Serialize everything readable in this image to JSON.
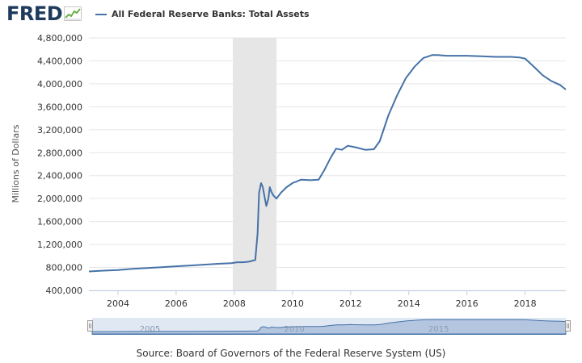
{
  "header": {
    "logo_text": "FRED",
    "legend_label": "All Federal Reserve Banks: Total Assets",
    "series_color": "#4572a7"
  },
  "chart_data": {
    "type": "line",
    "title": "",
    "xlabel": "",
    "ylabel": "Millions of Dollars",
    "xlim": [
      2003.0,
      2019.4
    ],
    "ylim": [
      400000,
      4800000
    ],
    "y_ticks": [
      400000,
      800000,
      1200000,
      1600000,
      2000000,
      2400000,
      2800000,
      3200000,
      3600000,
      4000000,
      4400000,
      4800000
    ],
    "y_tick_labels": [
      "400,000",
      "800,000",
      "1,200,000",
      "1,600,000",
      "2,000,000",
      "2,400,000",
      "2,800,000",
      "3,200,000",
      "3,600,000",
      "4,000,000",
      "4,400,000",
      "4,800,000"
    ],
    "x_ticks": [
      2004,
      2006,
      2008,
      2010,
      2012,
      2014,
      2016,
      2018
    ],
    "x_tick_labels": [
      "2004",
      "2006",
      "2008",
      "2010",
      "2012",
      "2014",
      "2016",
      "2018"
    ],
    "grid": "horizontal",
    "recession_shading": [
      2007.95,
      2009.45
    ],
    "series": [
      {
        "name": "All Federal Reserve Banks: Total Assets",
        "color": "#4572a7",
        "x": [
          2003.0,
          2003.5,
          2004.0,
          2004.5,
          2005.0,
          2005.5,
          2006.0,
          2006.5,
          2007.0,
          2007.5,
          2007.9,
          2008.1,
          2008.3,
          2008.5,
          2008.72,
          2008.8,
          2008.85,
          2008.92,
          2008.98,
          2009.05,
          2009.1,
          2009.17,
          2009.22,
          2009.27,
          2009.35,
          2009.45,
          2009.6,
          2009.8,
          2010.0,
          2010.3,
          2010.6,
          2010.9,
          2011.1,
          2011.3,
          2011.5,
          2011.7,
          2011.9,
          2012.2,
          2012.5,
          2012.8,
          2013.0,
          2013.3,
          2013.6,
          2013.9,
          2014.2,
          2014.5,
          2014.8,
          2015.0,
          2015.3,
          2015.7,
          2016.0,
          2016.5,
          2017.0,
          2017.5,
          2017.8,
          2018.0,
          2018.3,
          2018.6,
          2018.9,
          2019.2,
          2019.4
        ],
        "values": [
          730000,
          745000,
          755000,
          775000,
          790000,
          805000,
          820000,
          835000,
          850000,
          865000,
          875000,
          890000,
          890000,
          900000,
          930000,
          1400000,
          2100000,
          2270000,
          2200000,
          2000000,
          1870000,
          2000000,
          2200000,
          2120000,
          2050000,
          2000000,
          2100000,
          2200000,
          2270000,
          2330000,
          2320000,
          2330000,
          2500000,
          2700000,
          2870000,
          2850000,
          2920000,
          2890000,
          2850000,
          2860000,
          3000000,
          3450000,
          3800000,
          4100000,
          4300000,
          4450000,
          4500000,
          4500000,
          4490000,
          4490000,
          4490000,
          4480000,
          4470000,
          4470000,
          4460000,
          4440000,
          4300000,
          4150000,
          4050000,
          3980000,
          3900000
        ]
      }
    ],
    "navigator_labels": [
      {
        "x": 2005,
        "label": "2005"
      },
      {
        "x": 2010,
        "label": "2010"
      },
      {
        "x": 2015,
        "label": "2015"
      }
    ]
  },
  "footer": {
    "source": "Source: Board of Governors of the Federal Reserve System (US)"
  }
}
